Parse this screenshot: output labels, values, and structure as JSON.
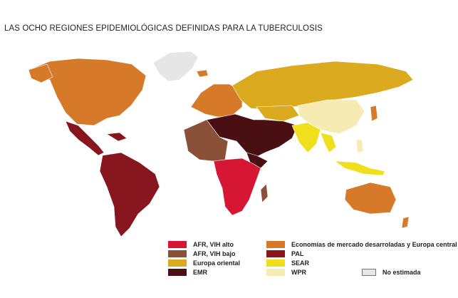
{
  "title": "LAS OCHO REGIONES EPIDEMIOLÓGICAS DEFINIDAS PARA LA TUBERCULOSIS",
  "colors": {
    "afr_high": "#d51734",
    "afr_low": "#8b5038",
    "eeur": "#dcaa1e",
    "emr": "#4a0f12",
    "estmkt": "#d67a2a",
    "pal": "#87161f",
    "sear": "#f0e01c",
    "wpr": "#f7ebb4",
    "none": "#e6e6e6"
  },
  "legend": {
    "afr_high": "AFR, VIH alto",
    "afr_low": "AFR, VIH bajo",
    "eeur": "Europa oriental",
    "emr": "EMR",
    "estmkt": "Economías de mercado desarroladas y Europa central",
    "pal": "PAL",
    "sear": "SEAR",
    "wpr": "WPR",
    "none": "No estimada"
  }
}
